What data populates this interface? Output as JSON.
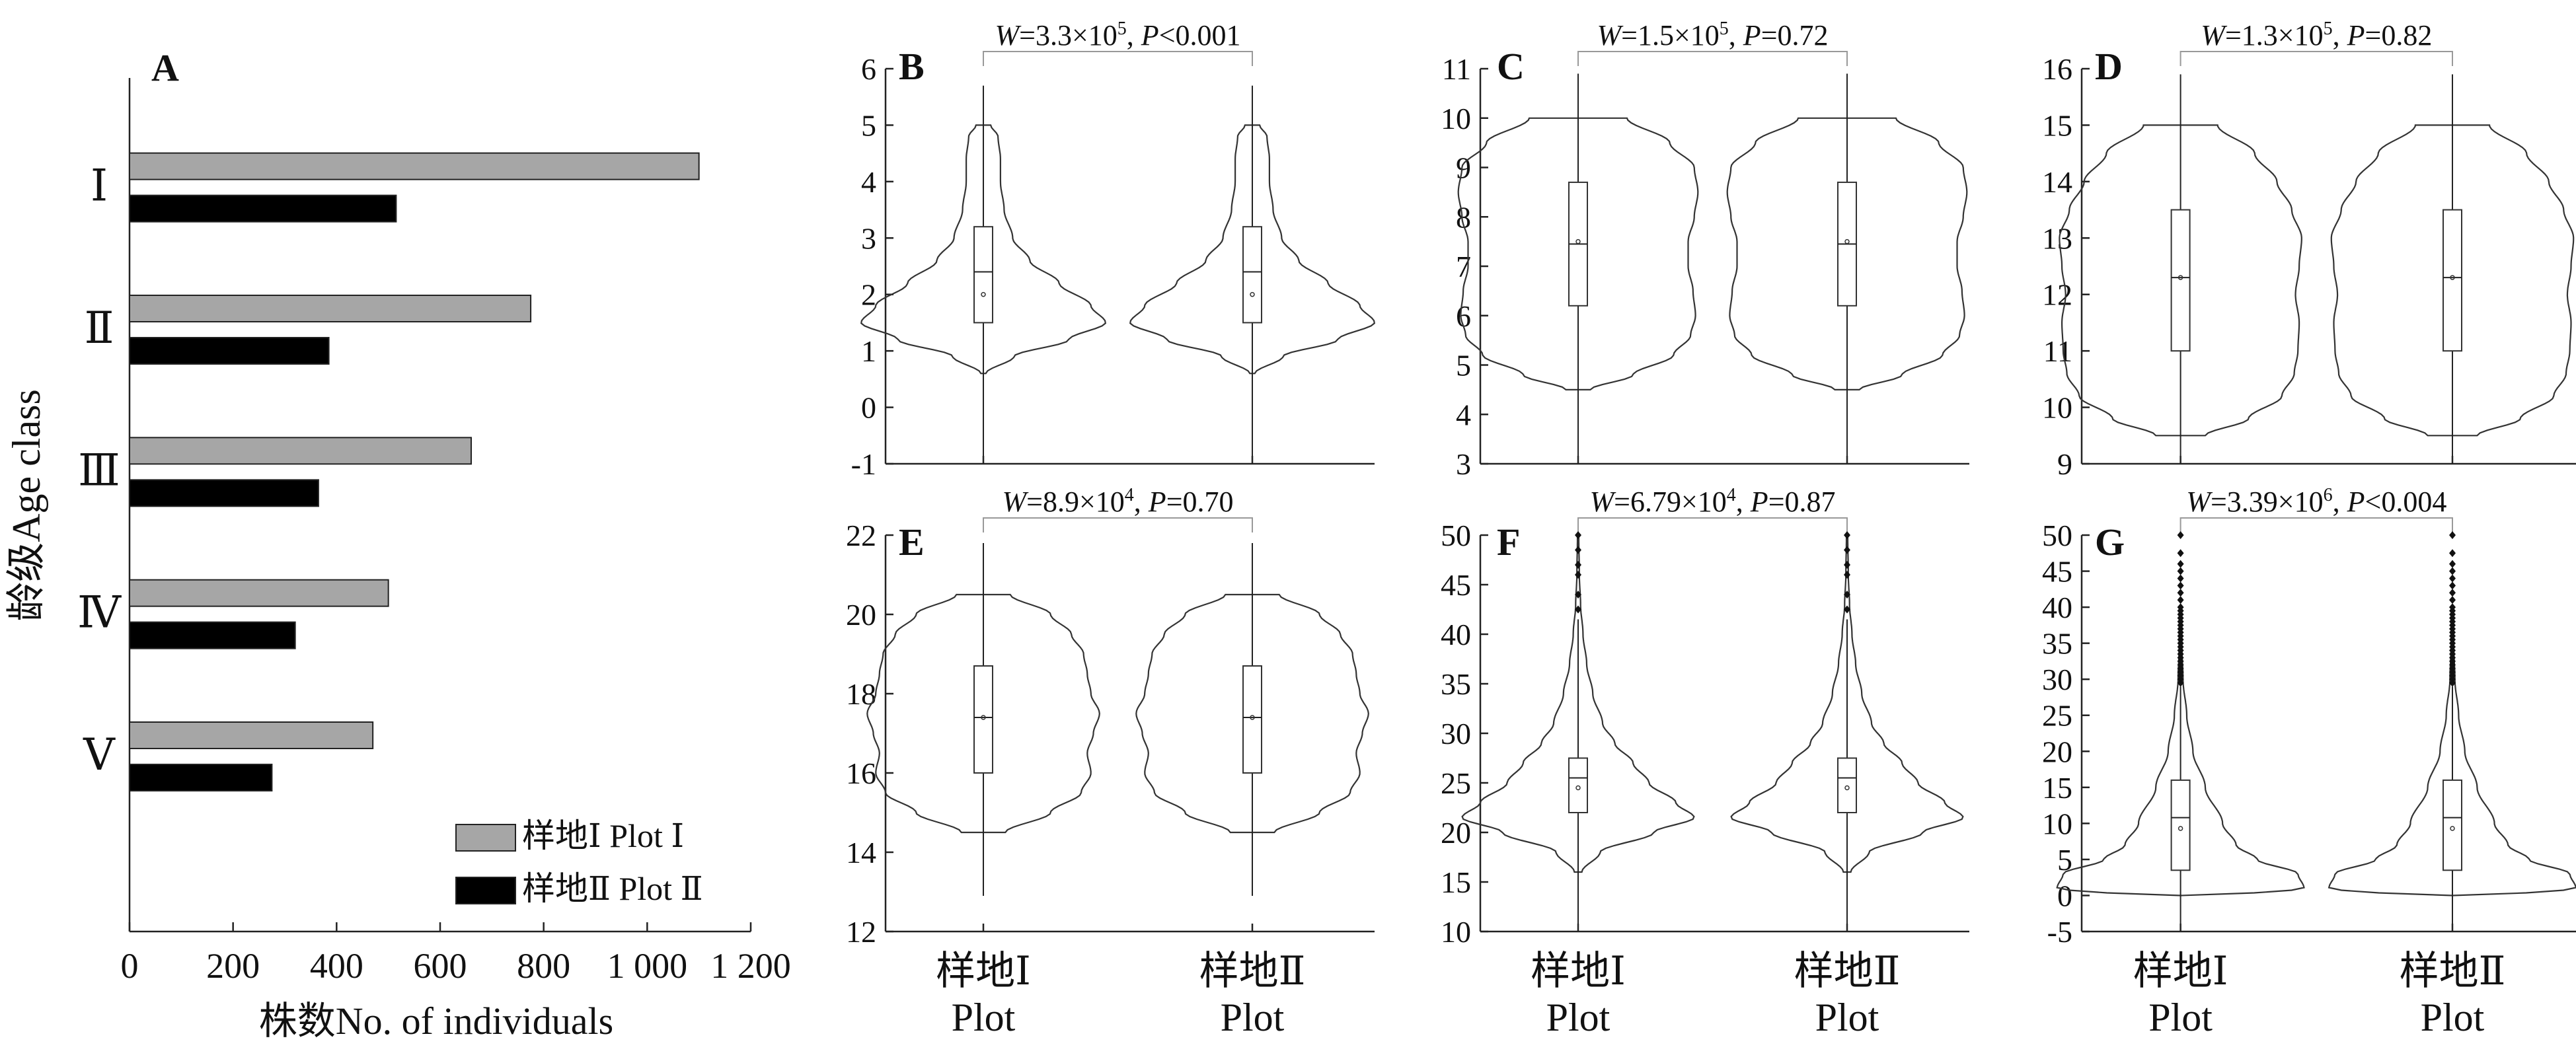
{
  "colors": {
    "plot1": "#a6a6a6",
    "plot2": "#000000",
    "line": "#333333"
  },
  "chart_data": [
    {
      "panel": "A",
      "type": "bar",
      "orientation": "horizontal",
      "categories": [
        "Ⅰ",
        "Ⅱ",
        "Ⅲ",
        "Ⅳ",
        "Ⅴ"
      ],
      "series": [
        {
          "name": "样地Ⅰ Plot Ⅰ",
          "values": [
            1100,
            775,
            660,
            500,
            470
          ]
        },
        {
          "name": "样地Ⅱ Plot Ⅱ",
          "values": [
            515,
            385,
            365,
            320,
            275
          ]
        }
      ],
      "xlabel": "株数No. of individuals",
      "ylabel": "龄级Age class",
      "xlim": [
        0,
        1200
      ],
      "xticks": [
        0,
        200,
        400,
        600,
        800,
        1000,
        1200
      ],
      "xtick_labels": [
        "0",
        "200",
        "400",
        "600",
        "800",
        "1 000",
        "1 200"
      ],
      "legend_position": "bottom-right"
    },
    {
      "panel": "B",
      "type": "violin",
      "ylim": [
        -1,
        6
      ],
      "yticks": [
        -1,
        0,
        1,
        2,
        3,
        4,
        5,
        6
      ],
      "categories": [
        "样地Ⅰ Plot Ⅰ",
        "样地Ⅱ Plot Ⅱ"
      ],
      "stat_w": "3.3×10",
      "stat_w_exp": "5",
      "stat_p_op": "<",
      "stat_p": "0.001",
      "box": {
        "whisker_low": -1,
        "q1": 1.5,
        "median": 2.4,
        "q3": 3.2,
        "whisker_high": 5.7,
        "mean": 2.0
      },
      "density": [
        [
          0.6,
          0.02
        ],
        [
          0.9,
          0.25
        ],
        [
          1.2,
          0.7
        ],
        [
          1.5,
          1.0
        ],
        [
          1.8,
          0.88
        ],
        [
          2.2,
          0.62
        ],
        [
          2.6,
          0.38
        ],
        [
          3.0,
          0.24
        ],
        [
          3.5,
          0.17
        ],
        [
          4.0,
          0.14
        ],
        [
          4.4,
          0.14
        ],
        [
          4.8,
          0.12
        ],
        [
          5.0,
          0.06
        ]
      ]
    },
    {
      "panel": "C",
      "type": "violin",
      "ylim": [
        3,
        11
      ],
      "yticks": [
        3,
        4,
        5,
        6,
        7,
        8,
        9,
        10,
        11
      ],
      "categories": [
        "样地Ⅰ Plot Ⅰ",
        "样地Ⅱ Plot Ⅱ"
      ],
      "stat_w": "1.5×10",
      "stat_w_exp": "5",
      "stat_p_op": "=",
      "stat_p": "0.72",
      "box": {
        "whisker_low": 3.1,
        "q1": 6.2,
        "median": 7.45,
        "q3": 8.7,
        "whisker_high": 10.9,
        "mean": 7.5
      },
      "density": [
        [
          4.5,
          0.1
        ],
        [
          4.8,
          0.45
        ],
        [
          5.2,
          0.78
        ],
        [
          5.6,
          0.92
        ],
        [
          6.0,
          0.96
        ],
        [
          6.5,
          0.94
        ],
        [
          7.0,
          0.9
        ],
        [
          7.5,
          0.9
        ],
        [
          8.0,
          0.95
        ],
        [
          8.5,
          0.98
        ],
        [
          9.0,
          0.95
        ],
        [
          9.5,
          0.75
        ],
        [
          10.0,
          0.4
        ]
      ]
    },
    {
      "panel": "D",
      "type": "violin",
      "ylim": [
        9,
        16
      ],
      "yticks": [
        9,
        10,
        11,
        12,
        13,
        14,
        15,
        16
      ],
      "categories": [
        "样地Ⅰ Plot Ⅰ",
        "样地Ⅱ Plot Ⅱ"
      ],
      "stat_w": "1.3×10",
      "stat_w_exp": "5",
      "stat_p_op": "=",
      "stat_p": "0.82",
      "box": {
        "whisker_low": 9.0,
        "q1": 11.0,
        "median": 12.3,
        "q3": 13.5,
        "whisker_high": 15.9,
        "mean": 12.3
      },
      "density": [
        [
          9.5,
          0.2
        ],
        [
          9.8,
          0.55
        ],
        [
          10.2,
          0.82
        ],
        [
          10.6,
          0.92
        ],
        [
          11.0,
          0.95
        ],
        [
          11.5,
          0.96
        ],
        [
          12.0,
          0.93
        ],
        [
          12.5,
          0.96
        ],
        [
          13.0,
          0.98
        ],
        [
          13.5,
          0.9
        ],
        [
          14.0,
          0.78
        ],
        [
          14.5,
          0.6
        ],
        [
          15.0,
          0.3
        ]
      ]
    },
    {
      "panel": "E",
      "type": "violin",
      "ylim": [
        12,
        22
      ],
      "yticks": [
        12,
        14,
        16,
        18,
        20,
        22
      ],
      "categories": [
        "样地Ⅰ Plot Ⅰ",
        "样地Ⅱ Plot Ⅱ"
      ],
      "stat_w": "8.9×10",
      "stat_w_exp": "4",
      "stat_p_op": "=",
      "stat_p": "0.70",
      "box": {
        "whisker_low": 12.9,
        "q1": 16.0,
        "median": 17.4,
        "q3": 18.7,
        "whisker_high": 21.8,
        "mean": 17.4
      },
      "density": [
        [
          14.5,
          0.18
        ],
        [
          15.0,
          0.55
        ],
        [
          15.5,
          0.8
        ],
        [
          16.0,
          0.88
        ],
        [
          16.5,
          0.85
        ],
        [
          17.0,
          0.9
        ],
        [
          17.5,
          0.95
        ],
        [
          18.0,
          0.88
        ],
        [
          18.5,
          0.85
        ],
        [
          19.0,
          0.82
        ],
        [
          19.5,
          0.72
        ],
        [
          20.0,
          0.55
        ],
        [
          20.5,
          0.22
        ]
      ]
    },
    {
      "panel": "F",
      "type": "violin",
      "ylim": [
        10,
        50
      ],
      "yticks": [
        10,
        15,
        20,
        25,
        30,
        35,
        40,
        45,
        50
      ],
      "categories": [
        "样地Ⅰ Plot Ⅰ",
        "样地Ⅱ Plot Ⅱ"
      ],
      "stat_w": "6.79×10",
      "stat_w_exp": "4",
      "stat_p_op": "=",
      "stat_p": "0.87",
      "box": {
        "whisker_low": 10,
        "q1": 22.0,
        "median": 25.5,
        "q3": 27.5,
        "whisker_high": 41.5,
        "mean": 24.5
      },
      "outliers": [
        42.5,
        44,
        46,
        47,
        48.5,
        50
      ],
      "density": [
        [
          16.0,
          0.03
        ],
        [
          18.0,
          0.18
        ],
        [
          20.0,
          0.62
        ],
        [
          21.5,
          0.95
        ],
        [
          23.0,
          0.8
        ],
        [
          25.0,
          0.58
        ],
        [
          27.0,
          0.45
        ],
        [
          29.0,
          0.3
        ],
        [
          31.0,
          0.2
        ],
        [
          34.0,
          0.12
        ],
        [
          37.0,
          0.07
        ],
        [
          40.0,
          0.04
        ],
        [
          43.0,
          0.02
        ],
        [
          46.0,
          0.01
        ],
        [
          50.0,
          0.005
        ]
      ]
    },
    {
      "panel": "G",
      "type": "violin",
      "ylim": [
        -5,
        50
      ],
      "yticks": [
        -5,
        0,
        5,
        10,
        15,
        20,
        25,
        30,
        35,
        40,
        45,
        50
      ],
      "categories": [
        "样地Ⅰ Plot Ⅰ",
        "样地Ⅱ Plot Ⅱ"
      ],
      "stat_w": "3.39×10",
      "stat_w_exp": "6",
      "stat_p_op": "<",
      "stat_p": "0.004",
      "box": {
        "whisker_low": -5,
        "q1": 3.5,
        "median": 10.8,
        "q3": 16.0,
        "whisker_high": 29.0,
        "mean": 9.3
      },
      "outliers": [
        29.5,
        30,
        30.5,
        31,
        31.5,
        32,
        32.5,
        33,
        33.5,
        34,
        34.5,
        35,
        35.5,
        36,
        36.5,
        37,
        37.5,
        38,
        38.5,
        39,
        39.5,
        40,
        41,
        42,
        43,
        44,
        45,
        46,
        47.5,
        50
      ],
      "density": [
        [
          0.0,
          0.42
        ],
        [
          1.0,
          1.0
        ],
        [
          3.0,
          0.95
        ],
        [
          5.0,
          0.62
        ],
        [
          7.0,
          0.45
        ],
        [
          10.0,
          0.34
        ],
        [
          15.0,
          0.2
        ],
        [
          20.0,
          0.1
        ],
        [
          25.0,
          0.05
        ],
        [
          30.0,
          0.02
        ],
        [
          35.0,
          0.01
        ],
        [
          40.0,
          0.005
        ]
      ]
    }
  ]
}
